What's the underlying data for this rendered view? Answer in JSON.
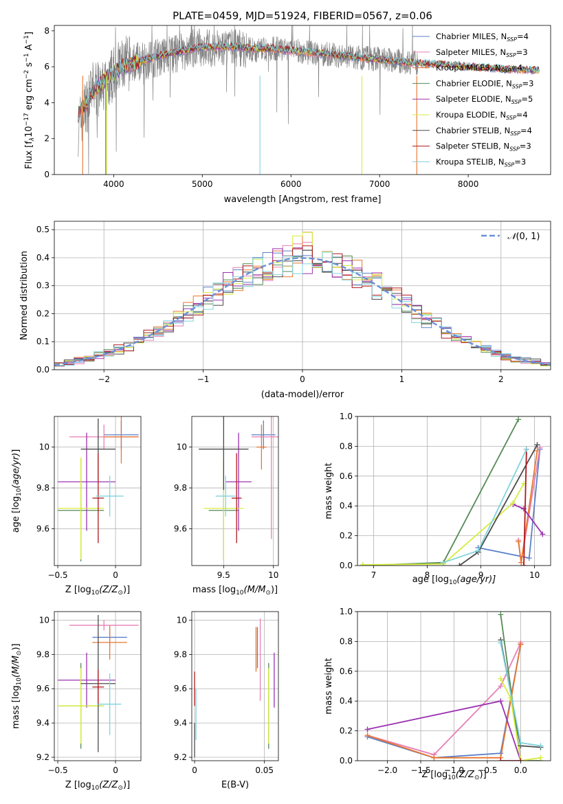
{
  "chart_data": [
    {
      "id": "spectrum",
      "type": "line",
      "title": "PLATE=0459, MJD=51924, FIBERID=0567, z=0.06",
      "xlabel": "wavelength [Angstrom, rest frame]",
      "ylabel": "Flux [f_λ10^-17 erg cm^-2 s^-1 A^-1]",
      "xlim": [
        3330,
        8930
      ],
      "ylim": [
        0,
        8.3
      ],
      "xticks": [
        4000,
        5000,
        6000,
        7000,
        8000
      ],
      "yticks": [
        0,
        2,
        4,
        6,
        8
      ],
      "legend_position": "right",
      "grid": false,
      "data_color": "#808080",
      "data_range": [
        3600,
        7440
      ],
      "data_points": [
        [
          3600,
          2.6
        ],
        [
          3650,
          3.4
        ],
        [
          3700,
          3.9
        ],
        [
          3750,
          4.6
        ],
        [
          3800,
          4.9
        ],
        [
          3850,
          4.4
        ],
        [
          3900,
          5.0
        ],
        [
          3950,
          5.3
        ],
        [
          4000,
          5.6
        ],
        [
          4100,
          6.1
        ],
        [
          4200,
          6.2
        ],
        [
          4300,
          6.3
        ],
        [
          4400,
          6.4
        ],
        [
          4500,
          6.5
        ],
        [
          4700,
          6.7
        ],
        [
          4900,
          7.0
        ],
        [
          5000,
          7.1
        ],
        [
          5200,
          7.0
        ],
        [
          5400,
          7.1
        ],
        [
          5600,
          6.9
        ],
        [
          5800,
          7.0
        ],
        [
          6000,
          6.9
        ],
        [
          6200,
          6.8
        ],
        [
          6400,
          6.7
        ],
        [
          6600,
          6.6
        ],
        [
          6800,
          6.5
        ],
        [
          7000,
          6.4
        ],
        [
          7200,
          6.3
        ],
        [
          7440,
          6.2
        ]
      ],
      "model_points": [
        [
          3600,
          3.4
        ],
        [
          3650,
          3.8
        ],
        [
          3700,
          4.0
        ],
        [
          3750,
          4.5
        ],
        [
          3800,
          4.8
        ],
        [
          3850,
          5.0
        ],
        [
          3900,
          5.3
        ],
        [
          4000,
          5.6
        ],
        [
          4100,
          6.0
        ],
        [
          4300,
          6.3
        ],
        [
          4500,
          6.6
        ],
        [
          4700,
          6.8
        ],
        [
          4900,
          7.0
        ],
        [
          5000,
          7.1
        ],
        [
          5200,
          7.1
        ],
        [
          5400,
          7.1
        ],
        [
          5600,
          7.0
        ],
        [
          5800,
          7.0
        ],
        [
          6000,
          6.9
        ],
        [
          6200,
          6.8
        ],
        [
          6400,
          6.7
        ],
        [
          6600,
          6.6
        ],
        [
          6800,
          6.5
        ],
        [
          7000,
          6.4
        ],
        [
          7200,
          6.3
        ],
        [
          7400,
          6.2
        ],
        [
          7600,
          6.15
        ],
        [
          7800,
          6.1
        ],
        [
          8000,
          6.0
        ],
        [
          8200,
          5.95
        ],
        [
          8500,
          5.85
        ],
        [
          8800,
          5.8
        ]
      ],
      "series": [
        {
          "name": "Chabrier MILES, N_SSP=4",
          "name_main": "Chabrier MILES, N",
          "name_sub": "SSP",
          "name_tail": "=4",
          "color": "#5a7fc8"
        },
        {
          "name": "Salpeter MILES, N_SSP=3",
          "name_main": "Salpeter MILES, N",
          "name_sub": "SSP",
          "name_tail": "=3",
          "color": "#e77fb5"
        },
        {
          "name": "Kroupa MILES, N_SSP=4",
          "name_main": "Kroupa MILES, N",
          "name_sub": "SSP",
          "name_tail": "=4",
          "color": "#e8762c"
        },
        {
          "name": "Chabrier ELODIE, N_SSP=3",
          "name_main": "Chabrier ELODIE, N",
          "name_sub": "SSP",
          "name_tail": "=3",
          "color": "#548a55"
        },
        {
          "name": "Salpeter ELODIE, N_SSP=5",
          "name_main": "Salpeter ELODIE, N",
          "name_sub": "SSP",
          "name_tail": "=5",
          "color": "#9b30b0"
        },
        {
          "name": "Kroupa ELODIE, N_SSP=4",
          "name_main": "Kroupa ELODIE, N",
          "name_sub": "SSP",
          "name_tail": "=4",
          "color": "#d6ec3e"
        },
        {
          "name": "Chabrier STELIB, N_SSP=4",
          "name_main": "Chabrier STELIB, N",
          "name_sub": "SSP",
          "name_tail": "=4",
          "color": "#4a4a4a"
        },
        {
          "name": "Salpeter STELIB, N_SSP=3",
          "name_main": "Salpeter STELIB, N",
          "name_sub": "SSP",
          "name_tail": "=3",
          "color": "#b0161b"
        },
        {
          "name": "Kroupa STELIB, N_SSP=3",
          "name_main": "Kroupa STELIB, N",
          "name_sub": "SSP",
          "name_tail": "=3",
          "color": "#7fd3dc"
        }
      ]
    },
    {
      "id": "residuals",
      "type": "histogram",
      "xlabel": "(data-model)/error",
      "ylabel": "Normed distribution",
      "xlim": [
        -2.5,
        2.5
      ],
      "ylim": [
        0,
        0.53
      ],
      "xticks": [
        -2,
        -1,
        0,
        1,
        2
      ],
      "yticks": [
        0.0,
        0.1,
        0.2,
        0.3,
        0.4,
        0.5
      ],
      "grid": true,
      "bin_width": 0.1,
      "reference_curve": {
        "name": "N(0,1)",
        "color": "#6a8fd8",
        "style": "dashed",
        "mean": 0,
        "sigma": 1
      },
      "legend_label_main": "(0, 1)",
      "legend_label_symbol": "𝒩",
      "legend_position": "top-right"
    },
    {
      "id": "age-vs-Z",
      "type": "errorbar",
      "xlabel_main": "Z [log",
      "xlabel_sub": "10",
      "xlabel_tail": "(Z/Z",
      "xlabel_sun": "⊙",
      "xlabel_end": ")]",
      "ylabel": "age [log10(age/yr)]",
      "xlim": [
        -0.53,
        0.22
      ],
      "ylim": [
        9.42,
        10.15
      ],
      "xticks": [
        -0.5,
        0.0
      ],
      "yticks": [
        9.6,
        9.8,
        10.0
      ],
      "grid": true,
      "points": [
        {
          "x": 0.05,
          "y": 10.06,
          "xerr": 0.15,
          "yerr": 0.07,
          "series": 0
        },
        {
          "x": -0.1,
          "y": 10.05,
          "xerr": 0.3,
          "yerr": 0.06,
          "series": 1
        },
        {
          "x": 0.05,
          "y": 10.05,
          "xerr": 0.15,
          "yerr": 0.13,
          "series": 2
        },
        {
          "x": -0.3,
          "y": 9.69,
          "xerr": 0.2,
          "yerr": 0.25,
          "series": 3
        },
        {
          "x": -0.25,
          "y": 9.83,
          "xerr": 0.25,
          "yerr": 0.24,
          "series": 4
        },
        {
          "x": -0.3,
          "y": 9.7,
          "xerr": 0.2,
          "yerr": 0.25,
          "series": 5
        },
        {
          "x": -0.15,
          "y": 9.99,
          "xerr": 0.15,
          "yerr": 0.15,
          "series": 6
        },
        {
          "x": -0.15,
          "y": 9.75,
          "xerr": 0.05,
          "yerr": 0.22,
          "series": 7
        },
        {
          "x": -0.05,
          "y": 9.76,
          "xerr": 0.12,
          "yerr": 0.1,
          "series": 8
        }
      ]
    },
    {
      "id": "age-vs-mass",
      "type": "errorbar",
      "xlabel_main": "mass [log",
      "xlabel_sub": "10",
      "xlabel_tail": "(M/M",
      "xlabel_sun": "⊙",
      "xlabel_end": ")]",
      "xlim": [
        9.18,
        10.05
      ],
      "ylim": [
        9.42,
        10.15
      ],
      "xticks": [
        9.5,
        10.0
      ],
      "yticks": [
        9.6,
        9.8,
        10.0
      ],
      "grid": true,
      "points": [
        {
          "x": 9.9,
          "y": 10.06,
          "xerr": 0.12,
          "yerr": 0.07,
          "series": 0
        },
        {
          "x": 9.98,
          "y": 10.05,
          "xerr": 0.2,
          "yerr": 0.5,
          "series": 1
        },
        {
          "x": 9.88,
          "y": 10.0,
          "xerr": 0.05,
          "yerr": 0.11,
          "series": 2
        },
        {
          "x": 9.5,
          "y": 9.69,
          "xerr": 0.15,
          "yerr": 0.24,
          "series": 3
        },
        {
          "x": 9.65,
          "y": 9.83,
          "xerr": 0.13,
          "yerr": 0.24,
          "series": 4
        },
        {
          "x": 9.5,
          "y": 9.7,
          "xerr": 0.2,
          "yerr": 0.25,
          "series": 5
        },
        {
          "x": 9.5,
          "y": 9.99,
          "xerr": 0.25,
          "yerr": 0.2,
          "series": 6
        },
        {
          "x": 9.63,
          "y": 9.75,
          "xerr": 0.05,
          "yerr": 0.22,
          "series": 7
        },
        {
          "x": 9.52,
          "y": 9.76,
          "xerr": 0.1,
          "yerr": 0.1,
          "series": 8
        }
      ]
    },
    {
      "id": "mass-weight-vs-age",
      "type": "line",
      "xlabel_main": "age  [log",
      "xlabel_sub": "10",
      "xlabel_tail": "(age/yr)]",
      "ylabel": "mass weight",
      "xlim": [
        6.7,
        10.3
      ],
      "ylim": [
        0,
        1.0
      ],
      "xticks": [
        7,
        8,
        9,
        10
      ],
      "yticks": [
        0.0,
        0.2,
        0.4,
        0.6,
        0.8,
        1.0
      ],
      "grid": true,
      "lines": [
        {
          "series": 0,
          "points": [
            [
              8.95,
              0.12
            ],
            [
              9.9,
              0.05
            ],
            [
              10.1,
              0.78
            ]
          ]
        },
        {
          "series": 1,
          "points": [
            [
              9.7,
              0.17
            ],
            [
              9.75,
              0.02
            ],
            [
              10.1,
              0.79
            ]
          ]
        },
        {
          "series": 2,
          "points": [
            [
              9.7,
              0.16
            ],
            [
              9.75,
              0.02
            ],
            [
              10.05,
              0.77
            ]
          ]
        },
        {
          "series": 3,
          "points": [
            [
              6.8,
              0.0
            ],
            [
              8.3,
              0.02
            ],
            [
              9.7,
              0.98
            ]
          ]
        },
        {
          "series": 4,
          "points": [
            [
              9.6,
              0.41
            ],
            [
              9.8,
              0.38
            ],
            [
              10.15,
              0.21
            ]
          ]
        },
        {
          "series": 5,
          "points": [
            [
              6.8,
              0.005
            ],
            [
              8.3,
              0.01
            ],
            [
              9.6,
              0.42
            ],
            [
              9.8,
              0.55
            ]
          ]
        },
        {
          "series": 6,
          "points": [
            [
              8.6,
              0.0
            ],
            [
              8.95,
              0.09
            ],
            [
              10.05,
              0.81
            ]
          ]
        },
        {
          "series": 7,
          "points": [
            [
              9.8,
              0.0
            ],
            [
              9.85,
              0.78
            ]
          ]
        },
        {
          "series": 8,
          "points": [
            [
              8.3,
              0.02
            ],
            [
              8.95,
              0.1
            ],
            [
              9.85,
              0.78
            ]
          ]
        }
      ]
    },
    {
      "id": "mass-vs-Z",
      "type": "errorbar",
      "xlabel_main": "Z [log",
      "xlabel_sub": "10",
      "xlabel_tail": "(Z/Z",
      "xlabel_sun": "⊙",
      "xlabel_end": ")]",
      "ylabel": "mass [log10(M/M_sun)]",
      "xlim": [
        -0.53,
        0.22
      ],
      "ylim": [
        9.18,
        10.05
      ],
      "xticks": [
        -0.5,
        0.0
      ],
      "yticks": [
        9.2,
        9.4,
        9.6,
        9.8,
        10.0
      ],
      "grid": true,
      "points": [
        {
          "x": -0.05,
          "y": 9.9,
          "xerr": 0.15,
          "yerr": 0.05,
          "series": 0
        },
        {
          "x": -0.1,
          "y": 9.97,
          "xerr": 0.3,
          "yerr": 0.03,
          "series": 1
        },
        {
          "x": -0.05,
          "y": 9.87,
          "xerr": 0.15,
          "yerr": 0.1,
          "series": 2
        },
        {
          "x": -0.3,
          "y": 9.5,
          "xerr": 0.2,
          "yerr": 0.25,
          "series": 3
        },
        {
          "x": -0.25,
          "y": 9.65,
          "xerr": 0.25,
          "yerr": 0.16,
          "series": 4
        },
        {
          "x": -0.3,
          "y": 9.5,
          "xerr": 0.2,
          "yerr": 0.22,
          "series": 5
        },
        {
          "x": -0.15,
          "y": 9.63,
          "xerr": 0.15,
          "yerr": 0.4,
          "series": 6
        },
        {
          "x": -0.15,
          "y": 9.61,
          "xerr": 0.05,
          "yerr": 0.1,
          "series": 7
        },
        {
          "x": -0.05,
          "y": 9.51,
          "xerr": 0.1,
          "yerr": 0.18,
          "series": 8
        }
      ]
    },
    {
      "id": "mass-vs-ebv",
      "type": "errorbar",
      "xlabel": "E(B-V)",
      "xlim": [
        -0.002,
        0.06
      ],
      "ylim": [
        9.18,
        10.05
      ],
      "xticks": [
        0.0,
        0.05
      ],
      "yticks": [
        9.2,
        9.4,
        9.6,
        9.8,
        10.0
      ],
      "grid": true,
      "points": [
        {
          "x": 0.045,
          "y": 9.84,
          "yerr": 0.12,
          "series": 0
        },
        {
          "x": 0.047,
          "y": 9.77,
          "yerr": 0.24,
          "series": 1
        },
        {
          "x": 0.044,
          "y": 9.83,
          "yerr": 0.13,
          "series": 2
        },
        {
          "x": 0.053,
          "y": 9.5,
          "yerr": 0.25,
          "series": 3
        },
        {
          "x": 0.057,
          "y": 9.65,
          "yerr": 0.16,
          "series": 4
        },
        {
          "x": 0.053,
          "y": 9.5,
          "yerr": 0.22,
          "series": 5
        },
        {
          "x": 0.0,
          "y": 9.3,
          "yerr": 0.1,
          "series": 6
        },
        {
          "x": 0.0,
          "y": 9.6,
          "yerr": 0.1,
          "series": 7
        },
        {
          "x": 0.001,
          "y": 9.45,
          "yerr": 0.15,
          "series": 8
        }
      ]
    },
    {
      "id": "mass-weight-vs-Z",
      "type": "line",
      "xlabel_main": "Z [log",
      "xlabel_sub": "10",
      "xlabel_tail": "(Z/Z",
      "xlabel_sun": "⊙",
      "xlabel_end": ")]",
      "ylabel": "mass weight",
      "xlim": [
        -2.45,
        0.45
      ],
      "ylim": [
        0,
        1.0
      ],
      "xticks": [
        -2.0,
        -1.5,
        -1.0,
        -0.5,
        0.0
      ],
      "xtick_labels": [
        "−2.0",
        "−1.5",
        "−1.0",
        "−0.5",
        "0.0"
      ],
      "yticks": [
        0.0,
        0.2,
        0.4,
        0.6,
        0.8,
        1.0
      ],
      "grid": true,
      "lines": [
        {
          "series": 0,
          "points": [
            [
              -2.3,
              0.16
            ],
            [
              -1.3,
              0.02
            ],
            [
              -0.3,
              0.05
            ],
            [
              0.0,
              0.78
            ]
          ]
        },
        {
          "series": 1,
          "points": [
            [
              -2.3,
              0.17
            ],
            [
              -1.3,
              0.04
            ],
            [
              -0.3,
              0.5
            ],
            [
              0.0,
              0.79
            ]
          ]
        },
        {
          "series": 2,
          "points": [
            [
              -2.3,
              0.17
            ],
            [
              -1.3,
              0.02
            ],
            [
              -0.3,
              0.02
            ],
            [
              0.0,
              0.78
            ]
          ]
        },
        {
          "series": 3,
          "points": [
            [
              -0.3,
              0.98
            ],
            [
              0.0,
              0.0
            ],
            [
              0.3,
              0.0
            ]
          ]
        },
        {
          "series": 4,
          "points": [
            [
              -2.3,
              0.21
            ],
            [
              -0.3,
              0.4
            ],
            [
              0.0,
              0.0
            ]
          ]
        },
        {
          "series": 5,
          "points": [
            [
              -0.3,
              0.55
            ],
            [
              -0.15,
              0.42
            ],
            [
              0.0,
              0.0
            ],
            [
              0.3,
              0.02
            ]
          ]
        },
        {
          "series": 6,
          "points": [
            [
              -0.3,
              0.81
            ],
            [
              0.0,
              0.1
            ],
            [
              0.3,
              0.09
            ]
          ]
        },
        {
          "series": 7,
          "points": [
            [
              -0.3,
              0.0
            ],
            [
              0.0,
              0.0
            ]
          ]
        },
        {
          "series": 8,
          "points": [
            [
              -0.3,
              0.79
            ],
            [
              0.0,
              0.12
            ],
            [
              0.3,
              0.1
            ]
          ]
        }
      ]
    }
  ]
}
